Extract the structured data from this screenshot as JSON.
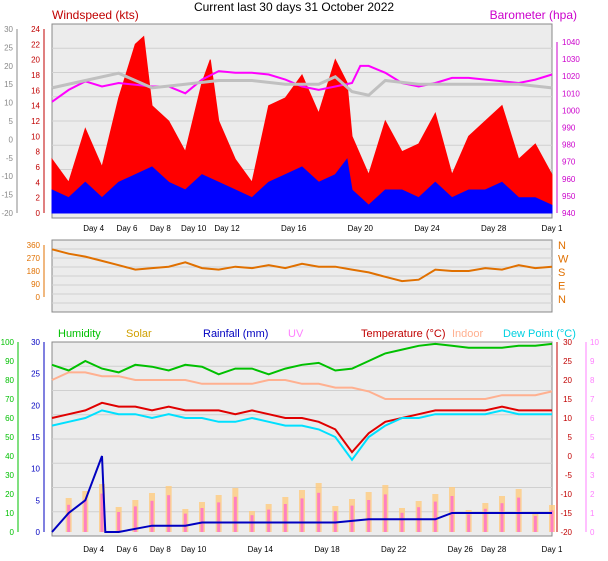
{
  "title": "Current last 30 days 31 October 2022",
  "chart_data": [
    {
      "type": "line",
      "panel": "wind-pressure",
      "left_axis_label": "Windspeed (kts)",
      "right_axis_label": "Barometer (hpa)",
      "outer_axis_ticks": [
        "30",
        "25",
        "20",
        "15",
        "10",
        "5",
        "0",
        "-5",
        "-10",
        "-15",
        "-20"
      ],
      "left_axis_ticks": [
        "24",
        "22",
        "20",
        "18",
        "16",
        "14",
        "12",
        "10",
        "8",
        "6",
        "4",
        "2",
        "0"
      ],
      "right_axis_ticks": [
        "1040",
        "1030",
        "1020",
        "1010",
        "1000",
        "990",
        "980",
        "970",
        "960",
        "950",
        "940"
      ],
      "x_tick_labels": [
        "Day 4",
        "Day 6",
        "Day 8",
        "Day 10",
        "Day 12",
        "Day 16",
        "Day 20",
        "Day 24",
        "Day 28",
        "Day 1"
      ],
      "x_tick_days": [
        3.5,
        5.5,
        7.5,
        9.5,
        11.5,
        15.5,
        19.5,
        23.5,
        27.5,
        31
      ],
      "series": [
        {
          "key": "gust",
          "color": "#ff0000",
          "days": [
            1,
            2,
            3,
            4,
            5,
            6,
            6.5,
            7,
            8,
            9,
            10,
            10.5,
            11,
            12,
            13,
            14,
            15,
            16,
            17,
            18,
            18.7,
            19,
            20,
            21,
            22,
            23,
            24,
            25,
            26,
            27,
            28,
            29,
            30,
            31
          ],
          "values": [
            7,
            4,
            11,
            6,
            15,
            22,
            23,
            14,
            12,
            8,
            17,
            20,
            12,
            7,
            4,
            14,
            15,
            18,
            13,
            20,
            17,
            10,
            5,
            12,
            8,
            9,
            13,
            5,
            10,
            12,
            14,
            7,
            9,
            5
          ]
        },
        {
          "key": "average",
          "color": "#0000ff",
          "days": [
            1,
            2,
            3,
            4,
            5,
            6,
            7,
            8,
            9,
            10,
            11,
            12,
            13,
            14,
            15,
            16,
            17,
            18,
            18.7,
            19,
            20,
            21,
            22,
            23,
            24,
            25,
            26,
            27,
            28,
            29,
            30,
            31
          ],
          "values": [
            3,
            2,
            4,
            2,
            4,
            5,
            6,
            4,
            3,
            5,
            4,
            3,
            2,
            4,
            5,
            6,
            4,
            5,
            7,
            3,
            1,
            3,
            3,
            2,
            4,
            2,
            3,
            3,
            4,
            2,
            2,
            1
          ]
        },
        {
          "key": "pressure",
          "color": "#ff00ff",
          "days": [
            1,
            2,
            3,
            4,
            5,
            6,
            7,
            8,
            9,
            10,
            11,
            12,
            13,
            14,
            15,
            16,
            17,
            18,
            19,
            19.5,
            20,
            21,
            22,
            23,
            24,
            25,
            26,
            27,
            28,
            29,
            30,
            31
          ],
          "values": [
            1005,
            1012,
            1017,
            1014,
            1016,
            1015,
            1014,
            1014,
            1010,
            1018,
            1023,
            1022,
            1022,
            1021,
            1018,
            1014,
            1012,
            1014,
            1016,
            1026,
            1026,
            1022,
            1016,
            1014,
            1016,
            1019,
            1019,
            1018,
            1017,
            1016,
            1018,
            1021
          ]
        },
        {
          "key": "direction-max",
          "color": "#c0c0c0",
          "days": [
            1,
            3,
            5,
            7,
            9,
            11,
            13,
            15,
            17,
            18,
            19,
            20,
            21,
            23,
            25,
            27,
            29,
            31
          ],
          "values": [
            14,
            16,
            18,
            14,
            15,
            16,
            16,
            15,
            15,
            17,
            13,
            12,
            16,
            15,
            15,
            15,
            15,
            14
          ]
        }
      ]
    },
    {
      "type": "line",
      "panel": "wind-direction",
      "left_axis_ticks": [
        "360",
        "270",
        "180",
        "90",
        "0"
      ],
      "right_axis_labels": [
        "N",
        "W",
        "S",
        "E",
        "N"
      ],
      "series": [
        {
          "key": "direction",
          "color": "#e07000",
          "days": [
            1,
            2,
            3,
            4,
            5,
            6,
            7,
            8,
            9,
            10,
            11,
            12,
            13,
            14,
            15,
            16,
            17,
            18,
            19,
            20,
            21,
            22,
            23,
            24,
            25,
            26,
            27,
            28,
            29,
            30,
            31
          ],
          "values": [
            330,
            300,
            280,
            250,
            220,
            190,
            200,
            210,
            240,
            200,
            190,
            210,
            200,
            220,
            200,
            230,
            210,
            210,
            190,
            170,
            140,
            110,
            120,
            190,
            180,
            180,
            200,
            190,
            220,
            200,
            210
          ]
        }
      ]
    },
    {
      "type": "line",
      "panel": "humidity-temperature",
      "legend": [
        "Humidity",
        "Solar",
        "Rainfall (mm)",
        "UV",
        "Temperature (°C)",
        "Indoor",
        "Dew Point (°C)"
      ],
      "humidity_axis_ticks": [
        "100",
        "90",
        "80",
        "70",
        "60",
        "50",
        "40",
        "30",
        "20",
        "10",
        "0"
      ],
      "rain_axis_ticks": [
        "30",
        "25",
        "20",
        "15",
        "10",
        "5",
        "0"
      ],
      "temp_axis_ticks": [
        "30",
        "25",
        "20",
        "15",
        "10",
        "5",
        "0",
        "-5",
        "-10",
        "-15",
        "-20"
      ],
      "uv_axis_ticks": [
        "10",
        "9",
        "8",
        "7",
        "6",
        "5",
        "4",
        "3",
        "2",
        "1",
        "0"
      ],
      "x_tick_labels": [
        "Day 4",
        "Day 6",
        "Day 8",
        "Day 10",
        "Day 14",
        "Day 18",
        "Day 22",
        "Day 26",
        "Day 28",
        "Day 1"
      ],
      "x_tick_days": [
        3.5,
        5.5,
        7.5,
        9.5,
        13.5,
        17.5,
        21.5,
        25.5,
        27.5,
        31
      ],
      "series": [
        {
          "key": "humidity",
          "color": "#00c000",
          "days": [
            1,
            2,
            3,
            4,
            5,
            6,
            7,
            8,
            9,
            10,
            11,
            12,
            13,
            14,
            15,
            16,
            17,
            18,
            19,
            20,
            21,
            22,
            23,
            24,
            25,
            26,
            27,
            28,
            29,
            30,
            31
          ],
          "values": [
            88,
            85,
            90,
            86,
            84,
            88,
            87,
            85,
            88,
            87,
            83,
            86,
            86,
            83,
            86,
            88,
            89,
            85,
            86,
            90,
            94,
            96,
            98,
            99,
            98,
            97,
            97,
            97,
            98,
            98,
            99
          ]
        },
        {
          "key": "indoor",
          "color": "#ffb090",
          "days": [
            1,
            2,
            3,
            4,
            5,
            6,
            7,
            8,
            9,
            10,
            11,
            12,
            13,
            14,
            15,
            16,
            17,
            18,
            19,
            20,
            21,
            22,
            23,
            24,
            25,
            26,
            27,
            28,
            29,
            30,
            31
          ],
          "values": [
            20,
            22,
            22,
            21,
            21,
            20,
            20,
            20,
            20,
            19,
            19,
            19,
            19,
            20,
            20,
            19,
            19,
            18,
            18,
            17,
            15,
            15,
            15,
            15,
            15,
            15,
            15,
            16,
            16,
            16,
            17
          ]
        },
        {
          "key": "temperature",
          "color": "#e00000",
          "days": [
            1,
            2,
            3,
            4,
            5,
            6,
            7,
            8,
            9,
            10,
            11,
            12,
            13,
            14,
            15,
            16,
            17,
            18,
            19,
            20,
            21,
            22,
            23,
            24,
            25,
            26,
            27,
            28,
            29,
            30,
            31
          ],
          "values": [
            10,
            11,
            12,
            14,
            13,
            13,
            12,
            13,
            12,
            12,
            12,
            11,
            12,
            11,
            10,
            10,
            9,
            7,
            1,
            6,
            9,
            10,
            11,
            12,
            12,
            12,
            12,
            13,
            12,
            12,
            12
          ]
        },
        {
          "key": "dew-point",
          "color": "#00e0ff",
          "days": [
            1,
            2,
            3,
            4,
            5,
            6,
            7,
            8,
            9,
            10,
            11,
            12,
            13,
            14,
            15,
            16,
            17,
            18,
            19,
            20,
            21,
            22,
            23,
            24,
            25,
            26,
            27,
            28,
            29,
            30,
            31
          ],
          "values": [
            8,
            9,
            10,
            12,
            11,
            11,
            10,
            11,
            10,
            10,
            9,
            9,
            10,
            9,
            8,
            8,
            7,
            5,
            -1,
            5,
            8,
            10,
            10,
            11,
            11,
            11,
            11,
            12,
            11,
            11,
            11
          ]
        },
        {
          "key": "rainfall",
          "color": "#0000c0",
          "days": [
            1,
            2,
            3,
            4,
            4.2,
            5,
            6,
            7,
            8,
            9,
            10,
            12,
            14,
            16,
            18,
            20,
            22,
            24,
            25,
            26,
            28,
            30,
            31
          ],
          "values": [
            0,
            3,
            5,
            12,
            0,
            0,
            0.5,
            1,
            1,
            1,
            1.5,
            1.5,
            1.5,
            1.5,
            1.5,
            2,
            2,
            2,
            3,
            3,
            3,
            3,
            3
          ]
        }
      ]
    }
  ]
}
